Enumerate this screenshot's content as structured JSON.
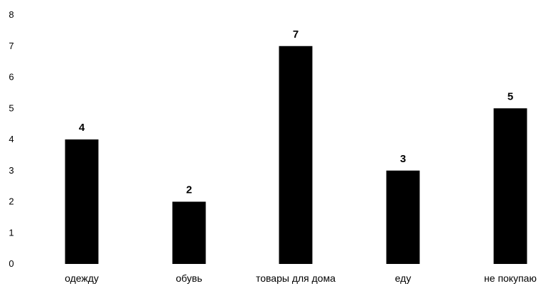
{
  "chart_data": {
    "type": "bar",
    "categories": [
      "одежду",
      "обувь",
      "товары для дома",
      "еду",
      "не покупаю"
    ],
    "values": [
      4,
      2,
      7,
      3,
      5
    ],
    "data_labels": [
      "4",
      "2",
      "7",
      "3",
      "5"
    ],
    "y_ticks": [
      "0",
      "1",
      "2",
      "3",
      "4",
      "5",
      "6",
      "7",
      "8"
    ],
    "ylim": [
      0,
      8
    ],
    "grid": false,
    "legend": "none",
    "bar_color": "#000000"
  }
}
